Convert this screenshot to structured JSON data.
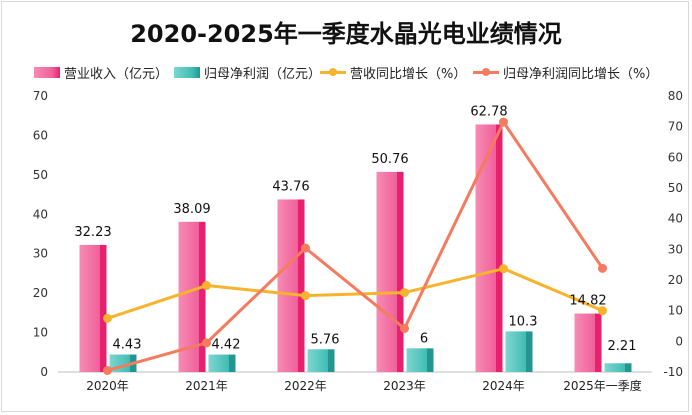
{
  "chart_data": {
    "type": "bar",
    "title": "2020-2025年一季度水晶光电业绩情况",
    "categories": [
      "2020年",
      "2021年",
      "2022年",
      "2023年",
      "2024年",
      "2025年一季度"
    ],
    "series": [
      {
        "name": "营业收入（亿元）",
        "kind": "bar",
        "axis": "left",
        "color": "#f0609a",
        "values": [
          32.23,
          38.09,
          43.76,
          50.76,
          62.78,
          14.82
        ]
      },
      {
        "name": "归母净利润（亿元）",
        "kind": "bar",
        "axis": "left",
        "color": "#3fbdb5",
        "values": [
          4.43,
          4.42,
          5.76,
          6,
          10.3,
          2.21
        ]
      },
      {
        "name": "营收同比增长（%）",
        "kind": "line",
        "axis": "right",
        "color": "#f7b32b",
        "values": [
          7.5,
          18.2,
          14.9,
          15.9,
          23.7,
          10.0
        ]
      },
      {
        "name": "归母净利润同比增长（%）",
        "kind": "line",
        "axis": "right",
        "color": "#f47b5e",
        "values": [
          -9.5,
          -0.5,
          30.4,
          4.2,
          71.5,
          23.8
        ]
      }
    ],
    "bar_value_labels": [
      [
        "32.23",
        "38.09",
        "43.76",
        "50.76",
        "62.78",
        "14.82"
      ],
      [
        "4.43",
        "4.42",
        "5.76",
        "6",
        "10.3",
        "2.21"
      ]
    ],
    "ylim_left": [
      0,
      70
    ],
    "yticks_left": [
      "0",
      "10",
      "20",
      "30",
      "40",
      "50",
      "60",
      "70"
    ],
    "ylim_right": [
      -10,
      80
    ],
    "yticks_right": [
      "-10",
      "0",
      "10",
      "20",
      "30",
      "40",
      "50",
      "60",
      "70",
      "80"
    ],
    "grid": false,
    "legend_position": "top"
  }
}
